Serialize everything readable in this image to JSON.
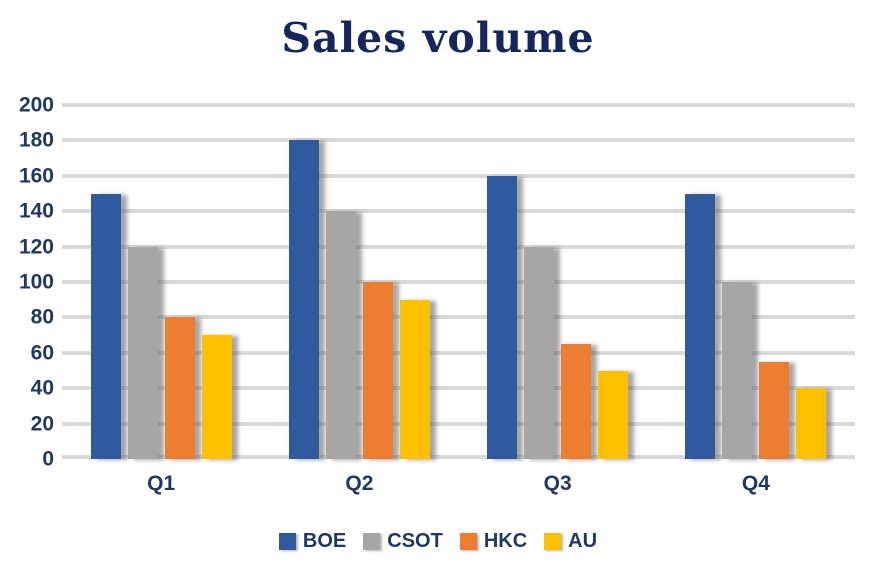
{
  "chart_data": {
    "type": "bar",
    "title": "Sales volume",
    "categories": [
      "Q1",
      "Q2",
      "Q3",
      "Q4"
    ],
    "series": [
      {
        "name": "BOE",
        "color": "#2F5A9E",
        "values": [
          150,
          180,
          160,
          150
        ]
      },
      {
        "name": "CSOT",
        "color": "#A6A6A6",
        "values": [
          120,
          140,
          120,
          100
        ]
      },
      {
        "name": "HKC",
        "color": "#ED7D31",
        "values": [
          80,
          100,
          65,
          55
        ]
      },
      {
        "name": "AU",
        "color": "#FFC000",
        "values": [
          70,
          90,
          50,
          40
        ]
      }
    ],
    "xlabel": "",
    "ylabel": "",
    "ylim": [
      0,
      200
    ],
    "yticks": [
      0,
      20,
      40,
      60,
      80,
      100,
      120,
      140,
      160,
      180,
      200
    ],
    "grid": true,
    "legend_position": "bottom"
  },
  "colors": {
    "title_text": "#14265C",
    "axis_text": "#1F3864",
    "gridline": "#D9D9D9",
    "background": "#FFFFFF"
  }
}
